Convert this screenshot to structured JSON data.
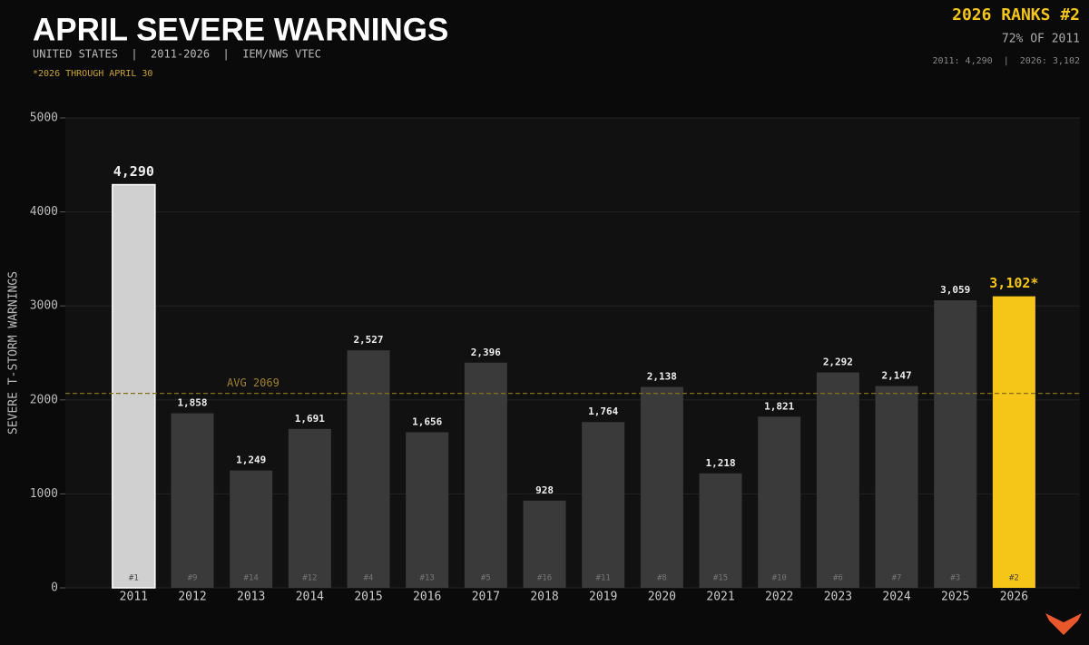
{
  "chart_data": {
    "type": "bar",
    "title": "APRIL SEVERE WARNINGS",
    "subtitle": "UNITED STATES  |  2011-2026  |  IEM/NWS VTEC",
    "note": "*2026 THROUGH APRIL 30",
    "headline": "2026 RANKS #2",
    "headline_sub": "72% OF 2011",
    "headline_detail": "2011: 4,290  |  2026: 3,102",
    "y_label": "SEVERE T-STORM WARNINGS",
    "categories": [
      "2011",
      "2012",
      "2013",
      "2014",
      "2015",
      "2016",
      "2017",
      "2018",
      "2019",
      "2020",
      "2021",
      "2022",
      "2023",
      "2024",
      "2025",
      "2026"
    ],
    "values": [
      4290,
      1858,
      1249,
      1691,
      2527,
      1656,
      2396,
      928,
      1764,
      2138,
      1218,
      1821,
      2292,
      2147,
      3059,
      3102
    ],
    "value_labels": [
      "4,290",
      "1,858",
      "1,249",
      "1,691",
      "2,527",
      "1,656",
      "2,396",
      "928",
      "1,764",
      "2,138",
      "1,218",
      "1,821",
      "2,292",
      "2,147",
      "3,059",
      "3,102*"
    ],
    "ranks": [
      "#1",
      "#9",
      "#14",
      "#12",
      "#4",
      "#13",
      "#5",
      "#16",
      "#11",
      "#8",
      "#15",
      "#10",
      "#6",
      "#7",
      "#3",
      "#2"
    ],
    "colors": [
      "#d0d0d0",
      "#3a3a3a",
      "#3a3a3a",
      "#3a3a3a",
      "#3a3a3a",
      "#3a3a3a",
      "#3a3a3a",
      "#3a3a3a",
      "#3a3a3a",
      "#3a3a3a",
      "#3a3a3a",
      "#3a3a3a",
      "#3a3a3a",
      "#3a3a3a",
      "#3a3a3a",
      "#f5c518"
    ],
    "average": {
      "value": 2069,
      "label": "AVG 2069"
    },
    "ylim": [
      0,
      5000
    ],
    "yticks": [
      0,
      1000,
      2000,
      3000,
      4000,
      5000
    ],
    "grid": true
  }
}
